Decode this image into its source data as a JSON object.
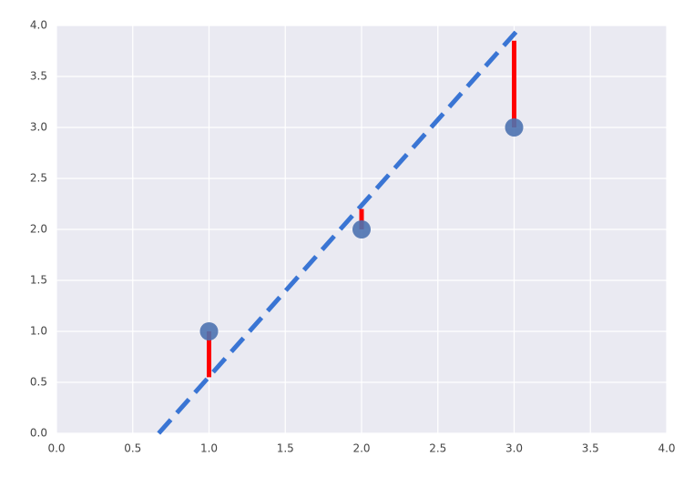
{
  "chart_data": {
    "type": "scatter",
    "xlim": [
      0,
      4
    ],
    "ylim": [
      0,
      4
    ],
    "xticks": [
      {
        "value": 0,
        "label": "0.0"
      },
      0.5,
      {
        "value": 1,
        "label": "1.0"
      },
      1.5,
      {
        "value": 2,
        "label": "2.0"
      },
      2.5,
      {
        "value": 3,
        "label": "3.0"
      },
      3.5,
      {
        "value": 4,
        "label": "4.0"
      }
    ],
    "yticks": [
      {
        "value": 0,
        "label": "0.0"
      },
      0.5,
      {
        "value": 1,
        "label": "1.0"
      },
      1.5,
      {
        "value": 2,
        "label": "2.0"
      },
      2.5,
      {
        "value": 3,
        "label": "3.0"
      },
      3.5,
      {
        "value": 4,
        "label": "4.0"
      }
    ],
    "grid": true,
    "points": {
      "x": [
        1,
        2,
        3
      ],
      "y": [
        1,
        2,
        3
      ],
      "color": "#4c72b0"
    },
    "fit_line": {
      "x": [
        0.67,
        3.05
      ],
      "y": [
        0,
        4
      ],
      "color": "#3a75d4"
    },
    "residuals": {
      "x": [
        1,
        2,
        3
      ],
      "fitted": [
        0.55,
        2.2,
        3.85
      ],
      "color": "#ff0000"
    }
  }
}
